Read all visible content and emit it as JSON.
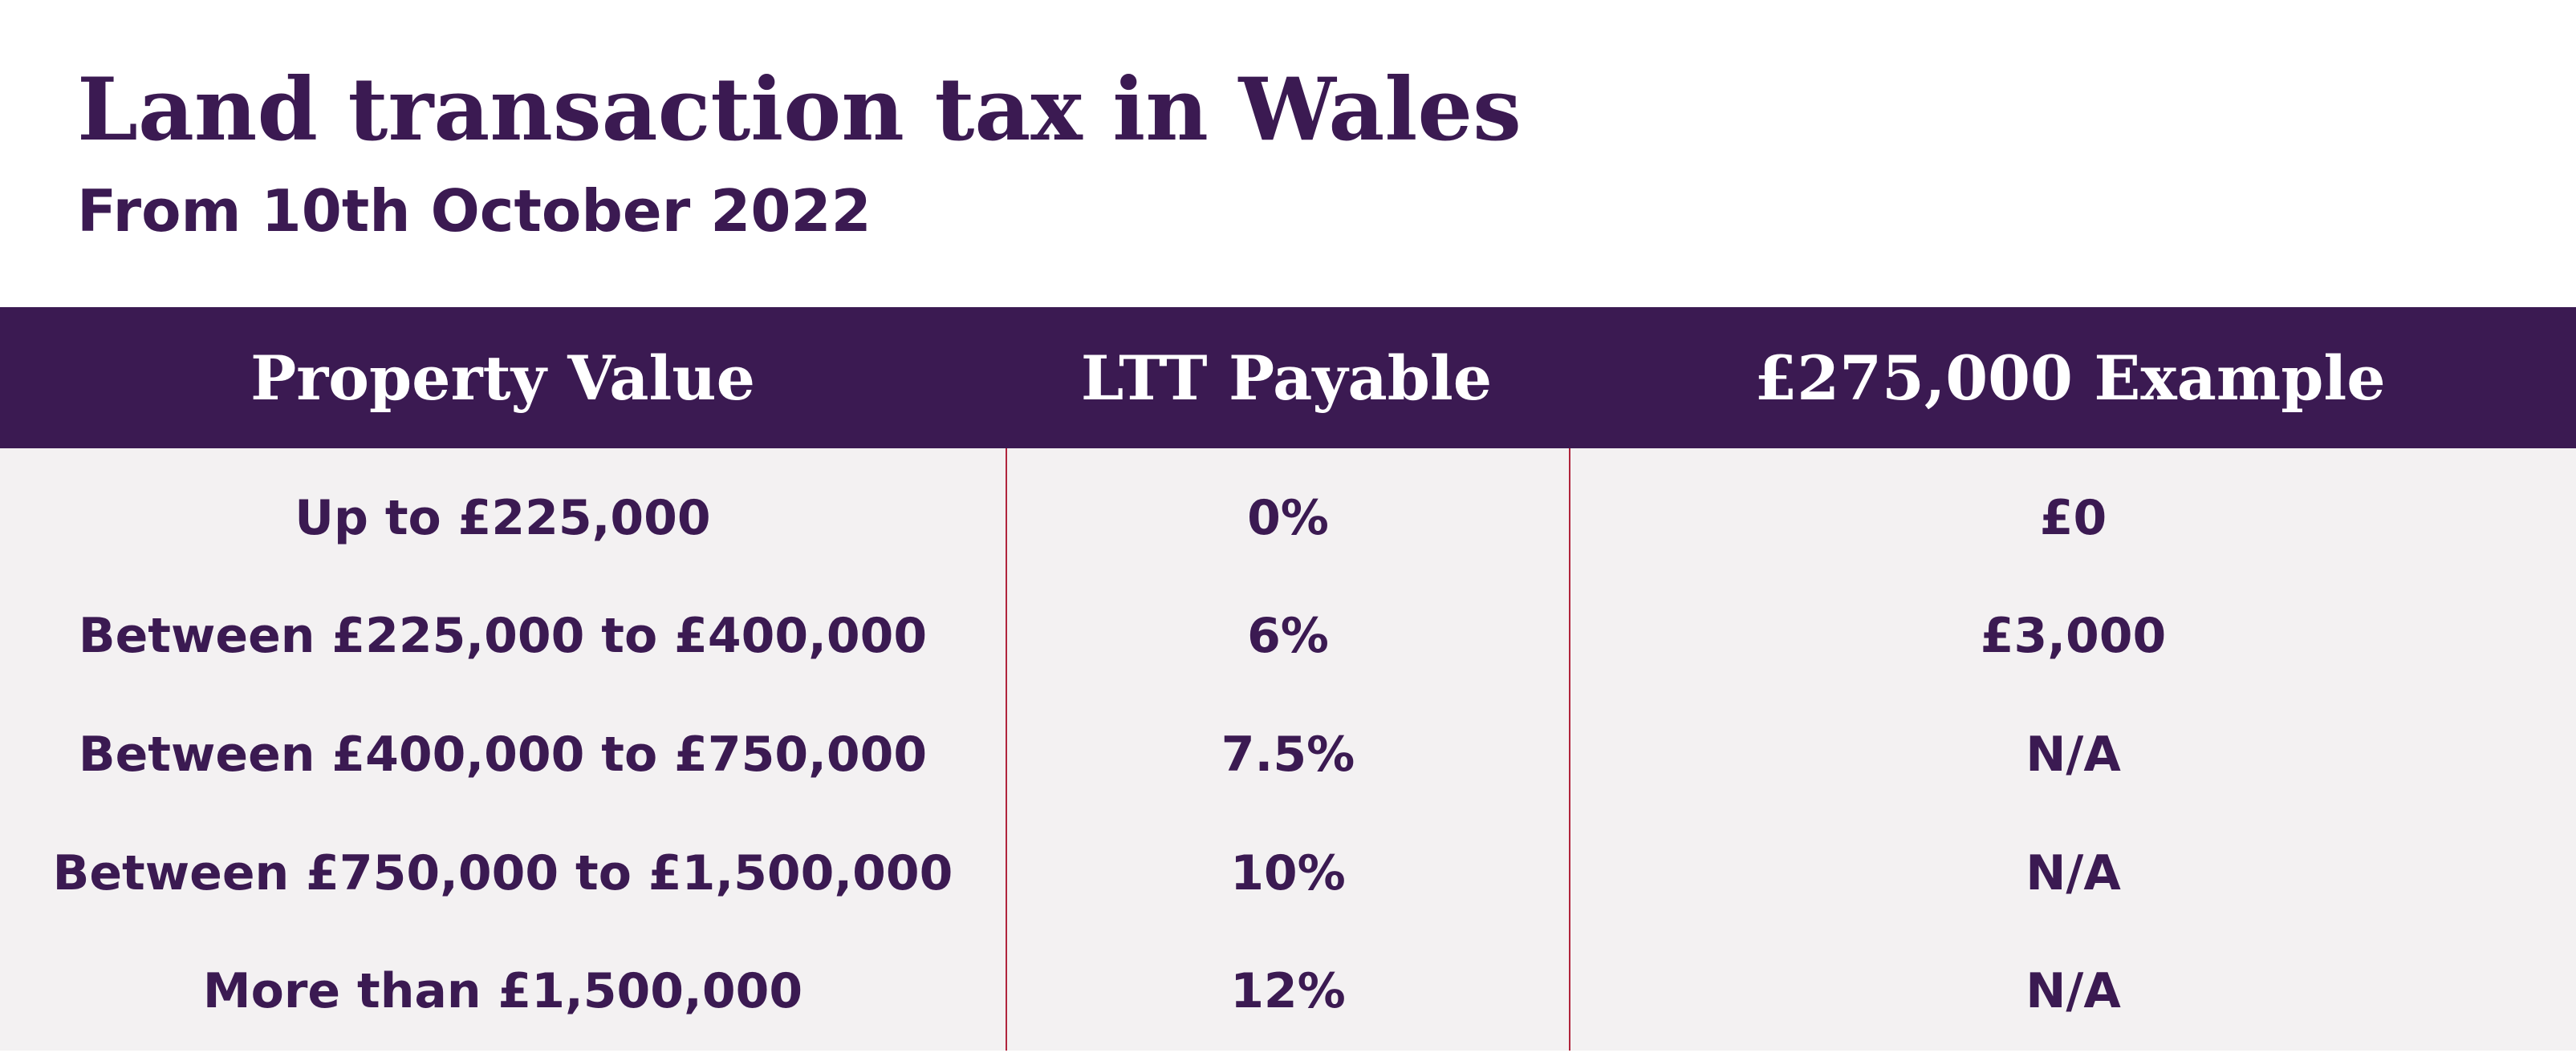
{
  "header": {
    "title": "Land transaction tax in Wales",
    "subtitle": "From 10th October 2022"
  },
  "table": {
    "columns": [
      "Property Value",
      "LTT Payable",
      "£275,000 Example"
    ],
    "rows": [
      [
        "Up to £225,000",
        "0%",
        "£0"
      ],
      [
        "Between £225,000 to £400,000",
        "6%",
        "£3,000"
      ],
      [
        "Between £400,000 to £750,000",
        "7.5%",
        "N/A"
      ],
      [
        "Between £750,000 to £1,500,000",
        "10%",
        "N/A"
      ],
      [
        "More than £1,500,000",
        "12%",
        "N/A"
      ]
    ]
  }
}
